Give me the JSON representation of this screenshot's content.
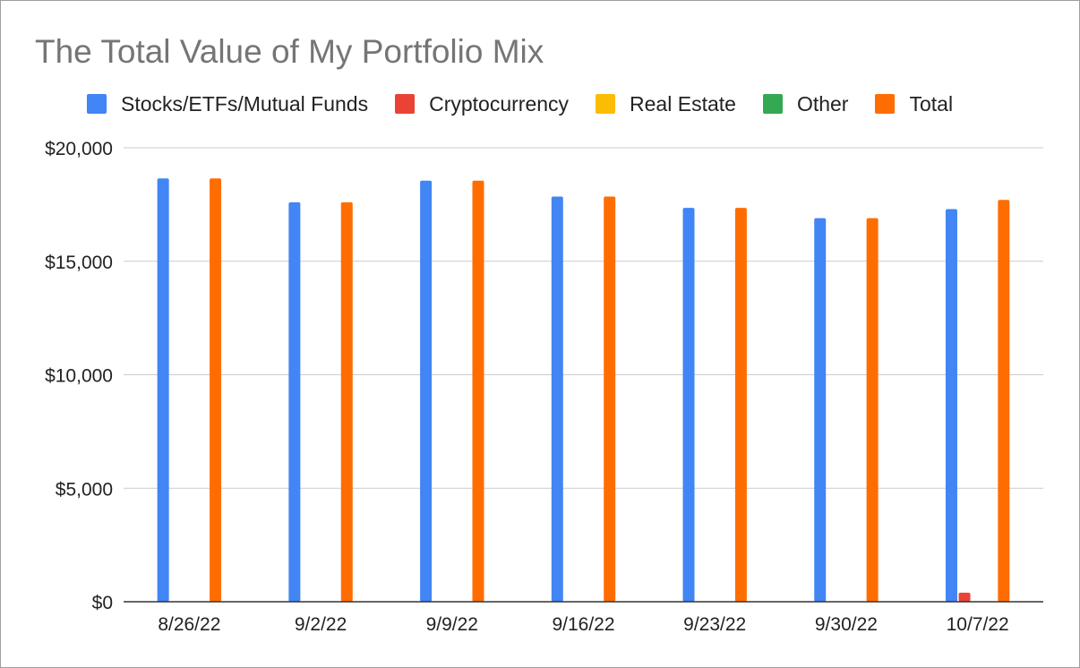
{
  "chart_data": {
    "type": "bar",
    "title": "The Total Value of My Portfolio Mix",
    "xlabel": "",
    "ylabel": "",
    "categories": [
      "8/26/22",
      "9/2/22",
      "9/9/22",
      "9/16/22",
      "9/23/22",
      "9/30/22",
      "10/7/22"
    ],
    "series": [
      {
        "name": "Stocks/ETFs/Mutual Funds",
        "color": "#4285f4",
        "values": [
          18650,
          17600,
          18550,
          17850,
          17350,
          16900,
          17300
        ]
      },
      {
        "name": "Cryptocurrency",
        "color": "#ea4335",
        "values": [
          0,
          0,
          0,
          0,
          0,
          0,
          400
        ]
      },
      {
        "name": "Real Estate",
        "color": "#fbbc04",
        "values": [
          0,
          0,
          0,
          0,
          0,
          0,
          0
        ]
      },
      {
        "name": "Other",
        "color": "#34a853",
        "values": [
          0,
          0,
          0,
          0,
          0,
          0,
          0
        ]
      },
      {
        "name": "Total",
        "color": "#ff6d01",
        "values": [
          18650,
          17600,
          18550,
          17850,
          17350,
          16900,
          17700
        ]
      }
    ],
    "ylim": [
      0,
      20000
    ],
    "yticks": [
      0,
      5000,
      10000,
      15000,
      20000
    ],
    "ytick_labels": [
      "$0",
      "$5,000",
      "$10,000",
      "$15,000",
      "$20,000"
    ],
    "grid": true,
    "legend_position": "top"
  }
}
